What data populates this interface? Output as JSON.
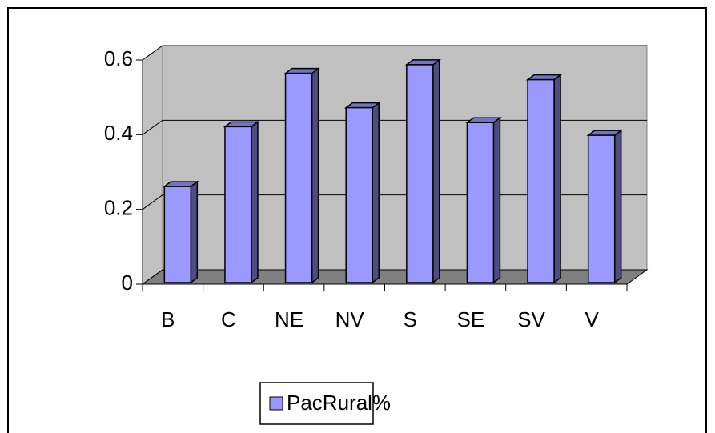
{
  "chart_data": {
    "type": "bar",
    "categories": [
      "B",
      "C",
      "NE",
      "NV",
      "S",
      "SE",
      "SV",
      "V"
    ],
    "series": [
      {
        "name": "PacRural%",
        "color": "#9999ff",
        "values": [
          0.257,
          0.417,
          0.56,
          0.468,
          0.583,
          0.428,
          0.543,
          0.394
        ]
      }
    ],
    "ylim": [
      0,
      0.6
    ],
    "yticks": [
      0,
      0.2,
      0.4,
      0.6
    ],
    "grid": true,
    "legend": "bottom"
  }
}
